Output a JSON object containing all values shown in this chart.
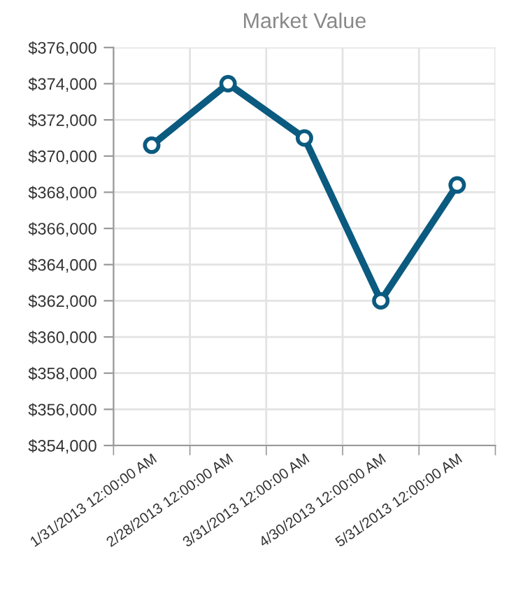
{
  "chart_data": {
    "type": "line",
    "title": "Market Value",
    "categories": [
      "1/31/2013 12:00:00 AM",
      "2/28/2013 12:00:00 AM",
      "3/31/2013 12:00:00 AM",
      "4/30/2013 12:00:00 AM",
      "5/31/2013 12:00:00 AM"
    ],
    "series": [
      {
        "color": "#0b5a80",
        "values": [
          370600,
          374000,
          371000,
          362000,
          368400
        ]
      }
    ],
    "ylim": [
      354000,
      376000
    ],
    "yticks": [
      {
        "value": 354000,
        "label": "$354,000"
      },
      {
        "value": 356000,
        "label": "$356,000"
      },
      {
        "value": 358000,
        "label": "$358,000"
      },
      {
        "value": 360000,
        "label": "$360,000"
      },
      {
        "value": 362000,
        "label": "$362,000"
      },
      {
        "value": 364000,
        "label": "$364,000"
      },
      {
        "value": 366000,
        "label": "$366,000"
      },
      {
        "value": 368000,
        "label": "$368,000"
      },
      {
        "value": 370000,
        "label": "$370,000"
      },
      {
        "value": 372000,
        "label": "$372,000"
      },
      {
        "value": 374000,
        "label": "$374,000"
      },
      {
        "value": 376000,
        "label": "$376,000"
      }
    ],
    "grid": true,
    "marker": "circle",
    "line_style": "solid"
  }
}
